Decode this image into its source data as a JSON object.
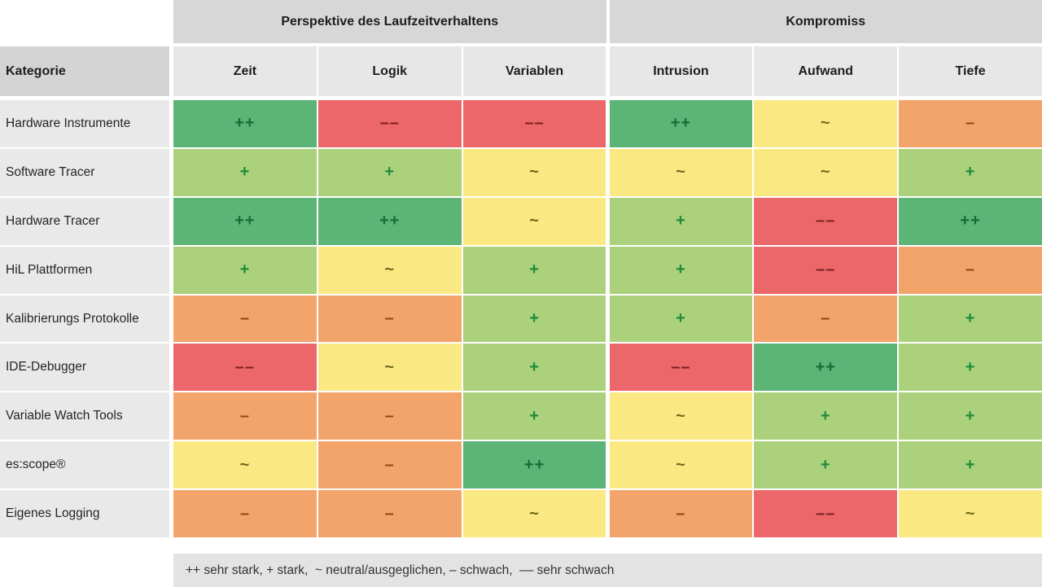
{
  "chart_data": {
    "type": "table",
    "corner_label": "Kategorie",
    "column_groups": [
      {
        "label": "Perspektive des Laufzeitverhaltens",
        "columns": [
          "Zeit",
          "Logik",
          "Variablen"
        ]
      },
      {
        "label": "Kompromiss",
        "columns": [
          "Intrusion",
          "Aufwand",
          "Tiefe"
        ]
      }
    ],
    "columns": [
      "Zeit",
      "Logik",
      "Variablen",
      "Intrusion",
      "Aufwand",
      "Tiefe"
    ],
    "rows": [
      {
        "label": "Hardware Instrumente",
        "ratings": [
          "++",
          "--",
          "--",
          "++",
          "~",
          "-"
        ]
      },
      {
        "label": "Software Tracer",
        "ratings": [
          "+",
          "+",
          "~",
          "~",
          "~",
          "+"
        ]
      },
      {
        "label": "Hardware Tracer",
        "ratings": [
          "++",
          "++",
          "~",
          "+",
          "--",
          "++"
        ]
      },
      {
        "label": "HiL Plattformen",
        "ratings": [
          "+",
          "~",
          "+",
          "+",
          "--",
          "-"
        ]
      },
      {
        "label": "Kalibrierungs Protokolle",
        "ratings": [
          "-",
          "-",
          "+",
          "+",
          "-",
          "+"
        ]
      },
      {
        "label": "IDE-Debugger",
        "ratings": [
          "--",
          "~",
          "+",
          "--",
          "++",
          "+"
        ]
      },
      {
        "label": "Variable Watch Tools",
        "ratings": [
          "-",
          "-",
          "+",
          "~",
          "+",
          "+"
        ]
      },
      {
        "label": "es:scope®",
        "ratings": [
          "~",
          "-",
          "++",
          "~",
          "+",
          "+"
        ]
      },
      {
        "label": "Eigenes Logging",
        "ratings": [
          "-",
          "-",
          "~",
          "-",
          "--",
          "~"
        ]
      }
    ],
    "rating_scale": {
      "++": {
        "meaning": "sehr stark",
        "glyph": "++",
        "bg": "#5cb476",
        "fg": "#136f35"
      },
      "+": {
        "meaning": "stark",
        "glyph": "+",
        "bg": "#acd17c",
        "fg": "#1f8b3b"
      },
      "~": {
        "meaning": "neutral/ausgeglichen",
        "glyph": "~",
        "bg": "#fae982",
        "fg": "#6f681f"
      },
      "-": {
        "meaning": "schwach",
        "glyph": "–",
        "bg": "#f3a46b",
        "fg": "#8c4a10"
      },
      "--": {
        "meaning": "sehr schwach",
        "glyph": "––",
        "bg": "#ec676a",
        "fg": "#7c2023"
      }
    },
    "legend": "++ sehr stark, + stark,  ~ neutral/ausgeglichen, – schwach,  –– sehr schwach",
    "layout": {
      "grid": "off",
      "legend_position": "bottom",
      "header_bg": "#d7d7d7",
      "subheader_bg": "#e7e7e7",
      "row_label_bg": "#e9e9e9",
      "legend_bg": "#e3e3e3"
    }
  }
}
